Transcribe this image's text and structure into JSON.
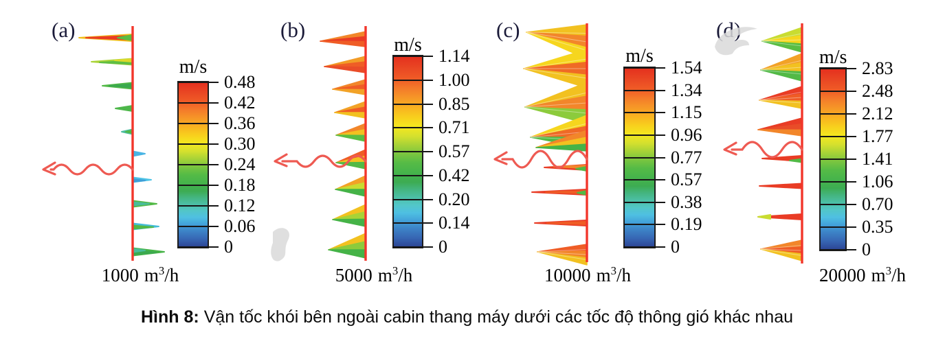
{
  "colorbar": {
    "title": "m/s",
    "stops": [
      {
        "c": "#e42f1e",
        "p": 0
      },
      {
        "c": "#ea4a24",
        "p": 7
      },
      {
        "c": "#f05c26",
        "p": 12
      },
      {
        "c": "#f47c2a",
        "p": 17
      },
      {
        "c": "#f69827",
        "p": 22
      },
      {
        "c": "#f9b320",
        "p": 27
      },
      {
        "c": "#f8cf1d",
        "p": 32
      },
      {
        "c": "#f4e81f",
        "p": 37
      },
      {
        "c": "#d4e02e",
        "p": 42
      },
      {
        "c": "#acd436",
        "p": 46
      },
      {
        "c": "#7cc63f",
        "p": 51
      },
      {
        "c": "#55bb46",
        "p": 56
      },
      {
        "c": "#46b44b",
        "p": 61
      },
      {
        "c": "#3dac52",
        "p": 66
      },
      {
        "c": "#44b581",
        "p": 70
      },
      {
        "c": "#4cbfa6",
        "p": 74
      },
      {
        "c": "#52c6c8",
        "p": 78
      },
      {
        "c": "#4fc0e2",
        "p": 82
      },
      {
        "c": "#43a3da",
        "p": 86
      },
      {
        "c": "#3d85c8",
        "p": 90
      },
      {
        "c": "#3767b4",
        "p": 95
      },
      {
        "c": "#2c4494",
        "p": 100
      }
    ]
  },
  "colors": {
    "wall": "#f2362b",
    "arrow": "#ee5a52",
    "watermark": "#d9d9d9",
    "letter": "#1a1a38"
  },
  "panels": [
    {
      "letter": "(a)",
      "ticks": [
        "0.48",
        "0.42",
        "0.36",
        "0.30",
        "0.24",
        "0.18",
        "0.12",
        "0.06",
        "0"
      ],
      "flow": {
        "value": "1000",
        "unit_m": "m",
        "unit_sup": "3",
        "unit_tail": "/h"
      }
    },
    {
      "letter": "(b)",
      "ticks": [
        "1.14",
        "1.00",
        "0.85",
        "0.71",
        "0.57",
        "0.42",
        "0.20",
        "0.14",
        "0"
      ],
      "flow": {
        "value": "5000",
        "unit_m": "m",
        "unit_sup": "3",
        "unit_tail": "/h"
      }
    },
    {
      "letter": "(c)",
      "ticks": [
        "1.54",
        "1.34",
        "1.15",
        "0.96",
        "0.77",
        "0.57",
        "0.38",
        "0.19",
        "0"
      ],
      "flow": {
        "value": "10000",
        "unit_m": "m",
        "unit_sup": "3",
        "unit_tail": "/h"
      }
    },
    {
      "letter": "(d)",
      "ticks": [
        "2.83",
        "2.48",
        "2.12",
        "1.77",
        "1.41",
        "1.06",
        "0.70",
        "0.35",
        "0"
      ],
      "flow": {
        "value": "20000",
        "unit_m": "m",
        "unit_sup": "3",
        "unit_tail": "/h"
      }
    }
  ],
  "caption": {
    "label": "Hình 8:",
    "text": "Vận tốc khói bên ngoài cabin thang máy dưới các tốc độ thông gió khác nhau"
  },
  "chart_data": [
    {
      "type": "vector-field",
      "panel": "(a)",
      "ventilation_rate_m3_per_h": 1000,
      "colorbar_unit": "m/s",
      "colorbar_ticks": [
        0.48,
        0.42,
        0.36,
        0.3,
        0.24,
        0.18,
        0.12,
        0.06,
        0
      ],
      "velocity_range": [
        0,
        0.48
      ]
    },
    {
      "type": "vector-field",
      "panel": "(b)",
      "ventilation_rate_m3_per_h": 5000,
      "colorbar_unit": "m/s",
      "colorbar_ticks": [
        1.14,
        1.0,
        0.85,
        0.71,
        0.57,
        0.42,
        0.2,
        0.14,
        0
      ],
      "velocity_range": [
        0,
        1.14
      ]
    },
    {
      "type": "vector-field",
      "panel": "(c)",
      "ventilation_rate_m3_per_h": 10000,
      "colorbar_unit": "m/s",
      "colorbar_ticks": [
        1.54,
        1.34,
        1.15,
        0.96,
        0.77,
        0.57,
        0.38,
        0.19,
        0
      ],
      "velocity_range": [
        0,
        1.54
      ]
    },
    {
      "type": "vector-field",
      "panel": "(d)",
      "ventilation_rate_m3_per_h": 20000,
      "colorbar_unit": "m/s",
      "colorbar_ticks": [
        2.83,
        2.48,
        2.12,
        1.77,
        1.41,
        1.06,
        0.7,
        0.35,
        0
      ],
      "velocity_range": [
        0,
        2.83
      ]
    }
  ]
}
